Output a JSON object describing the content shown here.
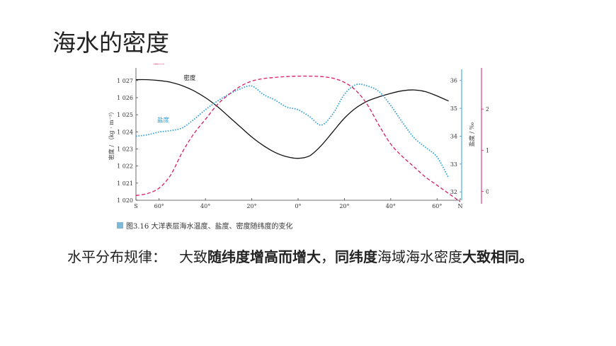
{
  "slide": {
    "title": "海水的密度"
  },
  "caption": {
    "text": "图3.16  大洋表层海水温度、盐度、密度随纬度的变化"
  },
  "rule": {
    "label": "水平分布规律：",
    "segments": [
      "大致",
      "随纬度增高而增大",
      "，",
      "同纬度",
      "海域海水密度",
      "大致相同。"
    ]
  },
  "chart_data": {
    "type": "line",
    "x_axis": {
      "ticks": [
        "S",
        "60°",
        "40°",
        "20°",
        "0°",
        "20°",
        "40°",
        "60°",
        "N"
      ]
    },
    "axes": {
      "density": {
        "label": "密度 / （kg · m⁻³）",
        "ticks": [
          "1 020",
          "1 021",
          "1 022",
          "1 023",
          "1 024",
          "1 025",
          "1 026",
          "1 027"
        ],
        "range": [
          1020,
          1027.2
        ]
      },
      "salinity": {
        "label": "盐度 / ‰",
        "ticks": [
          "32",
          "33",
          "34",
          "35",
          "36"
        ],
        "range": [
          31.7,
          36.4
        ]
      },
      "temperature": {
        "label": "温度 / °C",
        "ticks": [
          "0",
          "10",
          "20"
        ],
        "range": [
          -3,
          30
        ]
      }
    },
    "lat": [
      -70,
      -65,
      -60,
      -55,
      -50,
      -45,
      -40,
      -35,
      -30,
      -25,
      -20,
      -15,
      -10,
      -5,
      0,
      5,
      10,
      15,
      20,
      25,
      30,
      35,
      40,
      45,
      50,
      55,
      60,
      65,
      70
    ],
    "series": [
      {
        "name": "密度",
        "color": "#111111",
        "style": "solid",
        "axis": "density",
        "values": [
          1027.05,
          1027.05,
          1027.0,
          1026.9,
          1026.7,
          1026.4,
          1026.0,
          1025.5,
          1024.9,
          1024.3,
          1023.7,
          1023.2,
          1022.8,
          1022.55,
          1022.45,
          1022.6,
          1023.2,
          1024.0,
          1024.8,
          1025.4,
          1025.8,
          1026.05,
          1026.25,
          1026.4,
          1026.45,
          1026.35,
          1026.1,
          1025.8,
          null
        ]
      },
      {
        "name": "盐度",
        "color": "#2b9fd6",
        "style": "dotted",
        "axis": "salinity",
        "values": [
          34.0,
          34.05,
          34.15,
          34.2,
          34.3,
          34.6,
          34.95,
          35.25,
          35.5,
          35.7,
          35.8,
          35.5,
          35.3,
          35.05,
          34.95,
          34.7,
          34.4,
          34.8,
          35.5,
          35.85,
          35.8,
          35.6,
          35.1,
          34.5,
          33.95,
          33.6,
          33.25,
          32.5,
          null
        ]
      },
      {
        "name": "温度",
        "color": "#d81b6a",
        "style": "dashed",
        "axis": "temperature",
        "values": [
          -1.0,
          -0.5,
          0.8,
          4.0,
          9.5,
          14.0,
          17.5,
          21.0,
          23.5,
          25.5,
          26.8,
          27.4,
          27.7,
          27.9,
          28.0,
          28.0,
          27.9,
          27.5,
          26.5,
          24.5,
          21.0,
          16.0,
          11.5,
          8.5,
          6.0,
          3.5,
          1.5,
          -0.5,
          -2.5
        ]
      }
    ]
  }
}
